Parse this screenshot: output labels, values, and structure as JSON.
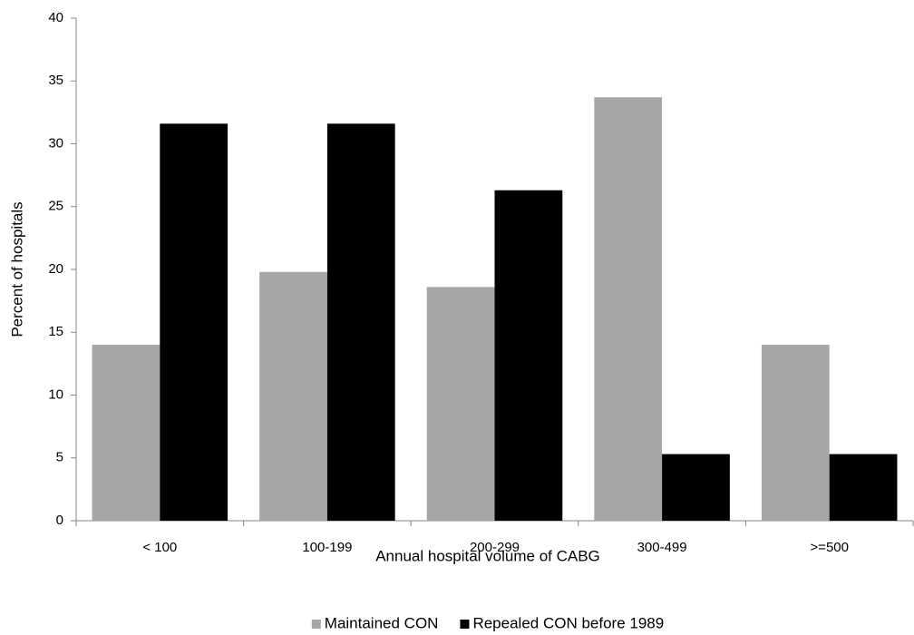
{
  "chart_data": {
    "type": "bar",
    "x_label": "Annual hospital volume of CABG",
    "y_label": "Percent of hospitals",
    "categories": [
      "< 100",
      "100-199",
      "200-299",
      "300-499",
      ">=500"
    ],
    "series": [
      {
        "name": "Maintained CON",
        "color": "#a6a6a6",
        "values": [
          14,
          19.8,
          18.6,
          33.7,
          14
        ]
      },
      {
        "name": "Repealed CON before 1989",
        "color": "#000000",
        "values": [
          31.6,
          31.6,
          26.3,
          5.3,
          5.3
        ]
      }
    ],
    "ylim": [
      0,
      40
    ],
    "yticks": [
      0,
      5,
      10,
      15,
      20,
      25,
      30,
      35,
      40
    ],
    "grid": false,
    "legend": "bottom"
  }
}
